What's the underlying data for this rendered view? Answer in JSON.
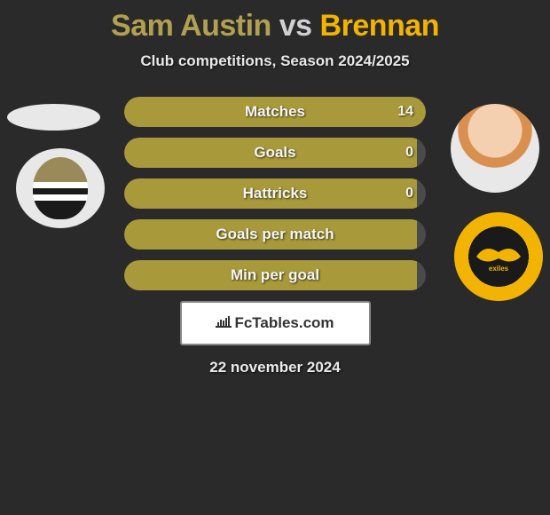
{
  "title": {
    "player1": "Sam Austin",
    "vs": "vs",
    "player2": "Brennan",
    "player1_color": "#b0a050",
    "player2_color": "#f2b400"
  },
  "subtitle": "Club competitions, Season 2024/2025",
  "stats": [
    {
      "label": "Matches",
      "value_right": "14",
      "fill_pct": 100,
      "show_right": true
    },
    {
      "label": "Goals",
      "value_right": "0",
      "fill_pct": 97,
      "show_right": true
    },
    {
      "label": "Hattricks",
      "value_right": "0",
      "fill_pct": 97,
      "show_right": true
    },
    {
      "label": "Goals per match",
      "value_right": "",
      "fill_pct": 97,
      "show_right": false
    },
    {
      "label": "Min per goal",
      "value_right": "",
      "fill_pct": 97,
      "show_right": false
    }
  ],
  "brand": "FcTables.com",
  "date": "22 november 2024",
  "colors": {
    "background": "#2a2a2a",
    "bar_bg": "#4a4a4a",
    "bar_fill": "#a89a3a",
    "text": "#ffffff"
  }
}
